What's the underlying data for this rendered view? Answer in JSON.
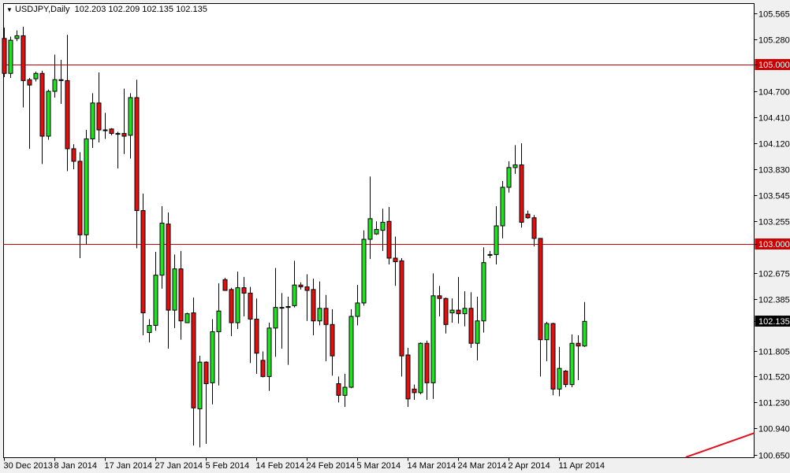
{
  "header": {
    "menu_icon": "triangle-down-icon",
    "symbol": "USDJPY,Daily",
    "ohlc_text": "102.203 102.209 102.135 102.135"
  },
  "colors": {
    "bull": "#22e022",
    "bear": "#e01010",
    "outline": "#000000",
    "hline": "#cc0000",
    "trendline": "#e0101e",
    "price_label_bg": "#000000"
  },
  "chart_data": {
    "type": "candlestick",
    "title": "USDJPY,Daily",
    "ylim": [
      100.615,
      105.679
    ],
    "grid": false,
    "y_ticks": [
      "105.565",
      "105.280",
      "105.000",
      "104.700",
      "104.410",
      "104.120",
      "103.830",
      "103.545",
      "103.255",
      "103.000",
      "102.675",
      "102.385",
      "102.135",
      "101.805",
      "101.520",
      "101.230",
      "100.940",
      "100.650"
    ],
    "x_ticks": [
      {
        "bar": 0,
        "label": "30 Dec 2013"
      },
      {
        "bar": 8,
        "label": "8 Jan 2014"
      },
      {
        "bar": 16,
        "label": "17 Jan 2014"
      },
      {
        "bar": 24,
        "label": "27 Jan 2014"
      },
      {
        "bar": 32,
        "label": "5 Feb 2014"
      },
      {
        "bar": 40,
        "label": "14 Feb 2014"
      },
      {
        "bar": 48,
        "label": "24 Feb 2014"
      },
      {
        "bar": 56,
        "label": "5 Mar 2014"
      },
      {
        "bar": 64,
        "label": "14 Mar 2014"
      },
      {
        "bar": 72,
        "label": "24 Mar 2014"
      },
      {
        "bar": 80,
        "label": "2 Apr 2014"
      },
      {
        "bar": 88,
        "label": "11 Apr 2014"
      }
    ],
    "horizontal_lines": [
      {
        "price": 105.0,
        "label": "105.000"
      },
      {
        "price": 103.0,
        "label": "103.000"
      }
    ],
    "current_price": {
      "price": 102.135,
      "label": "102.135"
    },
    "trendline": [
      {
        "bar": 108.1,
        "price": 100.62
      },
      {
        "bar": 119,
        "price": 100.89
      }
    ],
    "ohlc": [
      [
        105.29,
        105.41,
        104.86,
        104.9
      ],
      [
        104.9,
        105.31,
        104.85,
        105.27
      ],
      [
        105.29,
        105.38,
        105.26,
        105.32
      ],
      [
        105.32,
        105.42,
        104.52,
        104.82
      ],
      [
        104.83,
        104.85,
        104.06,
        104.77
      ],
      [
        104.84,
        104.92,
        104.81,
        104.9
      ],
      [
        104.9,
        104.93,
        103.89,
        104.2
      ],
      [
        104.2,
        104.72,
        104.16,
        104.7
      ],
      [
        104.7,
        105.11,
        104.63,
        104.83
      ],
      [
        104.82,
        105.05,
        104.56,
        104.83
      ],
      [
        104.82,
        105.33,
        103.81,
        104.06
      ],
      [
        104.06,
        104.11,
        103.83,
        103.92
      ],
      [
        103.92,
        104.02,
        102.84,
        103.1
      ],
      [
        103.1,
        104.27,
        102.99,
        104.17
      ],
      [
        104.17,
        104.68,
        104.07,
        104.57
      ],
      [
        104.57,
        104.91,
        104.13,
        104.27
      ],
      [
        104.27,
        104.46,
        104.17,
        104.27
      ],
      [
        104.28,
        104.29,
        104.21,
        104.23
      ],
      [
        104.23,
        104.25,
        103.84,
        104.23
      ],
      [
        104.23,
        104.73,
        104.0,
        104.2
      ],
      [
        104.21,
        104.68,
        103.95,
        104.63
      ],
      [
        104.63,
        104.83,
        102.95,
        103.37
      ],
      [
        103.37,
        103.56,
        101.98,
        102.23
      ],
      [
        102.01,
        102.16,
        101.9,
        102.09
      ],
      [
        102.09,
        102.91,
        102.03,
        102.65
      ],
      [
        102.65,
        103.42,
        102.5,
        103.23
      ],
      [
        103.22,
        103.35,
        101.83,
        102.26
      ],
      [
        102.26,
        102.88,
        102.06,
        102.72
      ],
      [
        102.72,
        102.92,
        101.93,
        102.14
      ],
      [
        102.12,
        102.23,
        102.12,
        102.22
      ],
      [
        102.23,
        102.4,
        100.75,
        101.17
      ],
      [
        101.16,
        101.75,
        100.73,
        101.68
      ],
      [
        101.68,
        101.69,
        100.77,
        101.44
      ],
      [
        101.45,
        102.16,
        101.21,
        102.02
      ],
      [
        102.02,
        102.56,
        101.42,
        102.25
      ],
      [
        102.6,
        102.62,
        102.48,
        102.48
      ],
      [
        102.49,
        102.51,
        101.97,
        102.12
      ],
      [
        102.12,
        102.69,
        102.05,
        102.51
      ],
      [
        102.51,
        102.63,
        102.19,
        102.45
      ],
      [
        102.45,
        102.52,
        101.67,
        102.16
      ],
      [
        102.16,
        102.39,
        101.55,
        101.78
      ],
      [
        101.7,
        101.8,
        101.51,
        101.52
      ],
      [
        101.52,
        102.12,
        101.36,
        102.06
      ],
      [
        102.06,
        102.73,
        101.74,
        102.29
      ],
      [
        102.29,
        102.45,
        101.83,
        102.29
      ],
      [
        102.29,
        102.41,
        101.65,
        102.3
      ],
      [
        102.31,
        102.81,
        102.29,
        102.54
      ],
      [
        102.54,
        102.57,
        102.49,
        102.52
      ],
      [
        102.52,
        102.66,
        102.14,
        102.48
      ],
      [
        102.49,
        102.61,
        101.98,
        102.14
      ],
      [
        102.14,
        102.58,
        102.09,
        102.28
      ],
      [
        102.28,
        102.43,
        101.69,
        102.1
      ],
      [
        102.1,
        102.27,
        101.53,
        101.75
      ],
      [
        101.44,
        101.52,
        101.23,
        101.31
      ],
      [
        101.31,
        101.55,
        101.18,
        101.4
      ],
      [
        101.4,
        102.27,
        101.39,
        102.19
      ],
      [
        102.19,
        102.54,
        102.09,
        102.34
      ],
      [
        102.34,
        103.15,
        102.31,
        103.05
      ],
      [
        103.05,
        103.75,
        102.83,
        103.28
      ],
      [
        103.11,
        103.25,
        103.1,
        103.16
      ],
      [
        103.15,
        103.39,
        102.92,
        103.24
      ],
      [
        103.25,
        103.41,
        102.77,
        102.84
      ],
      [
        102.84,
        103.08,
        102.53,
        102.8
      ],
      [
        102.81,
        102.84,
        101.52,
        101.75
      ],
      [
        101.76,
        101.84,
        101.18,
        101.27
      ],
      [
        101.38,
        101.43,
        101.26,
        101.34
      ],
      [
        101.34,
        101.9,
        101.32,
        101.89
      ],
      [
        101.89,
        101.92,
        101.26,
        101.45
      ],
      [
        101.45,
        102.67,
        101.27,
        102.42
      ],
      [
        102.42,
        102.53,
        102.19,
        102.39
      ],
      [
        102.39,
        102.4,
        102.0,
        102.1
      ],
      [
        102.23,
        102.39,
        102.12,
        102.26
      ],
      [
        102.26,
        102.63,
        102.11,
        102.22
      ],
      [
        102.22,
        102.47,
        102.08,
        102.28
      ],
      [
        102.28,
        102.46,
        101.84,
        101.89
      ],
      [
        101.89,
        102.41,
        101.7,
        102.14
      ],
      [
        102.14,
        102.96,
        102.01,
        102.79
      ],
      [
        102.88,
        102.92,
        102.84,
        102.88
      ],
      [
        102.88,
        103.42,
        102.77,
        103.2
      ],
      [
        103.2,
        103.7,
        103.06,
        103.63
      ],
      [
        103.63,
        103.92,
        103.57,
        103.85
      ],
      [
        103.85,
        104.1,
        103.78,
        103.88
      ],
      [
        103.88,
        104.12,
        103.18,
        103.24
      ],
      [
        103.33,
        103.37,
        103.28,
        103.29
      ],
      [
        103.29,
        103.32,
        102.97,
        103.06
      ],
      [
        103.06,
        103.06,
        101.52,
        101.93
      ],
      [
        101.93,
        102.13,
        101.69,
        102.11
      ],
      [
        102.11,
        102.12,
        101.31,
        101.38
      ],
      [
        101.38,
        101.85,
        101.3,
        101.61
      ],
      [
        101.58,
        101.59,
        101.4,
        101.43
      ],
      [
        101.43,
        101.99,
        101.4,
        101.89
      ],
      [
        101.89,
        101.98,
        101.48,
        101.86
      ],
      [
        101.86,
        102.35,
        101.85,
        102.135
      ]
    ]
  }
}
